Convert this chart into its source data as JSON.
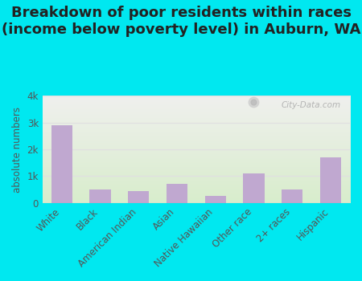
{
  "title": "Breakdown of poor residents within races\n(income below poverty level) in Auburn, WA",
  "categories": [
    "White",
    "Black",
    "American Indian",
    "Asian",
    "Native Hawaiian",
    "Other race",
    "2+ races",
    "Hispanic"
  ],
  "values": [
    2900,
    500,
    450,
    700,
    250,
    1100,
    500,
    1700
  ],
  "bar_color": "#c0a8d0",
  "ylabel": "absolute numbers",
  "ylim": [
    0,
    4000
  ],
  "yticks": [
    0,
    1000,
    2000,
    3000,
    4000
  ],
  "ytick_labels": [
    "0",
    "1k",
    "2k",
    "3k",
    "4k"
  ],
  "background_outer": "#00e8f0",
  "grad_top": "#f0f0ee",
  "grad_bottom": "#d8edcc",
  "grid_color": "#e0e0e0",
  "title_fontsize": 13,
  "label_fontsize": 8.5,
  "tick_fontsize": 8.5,
  "watermark": "City-Data.com"
}
